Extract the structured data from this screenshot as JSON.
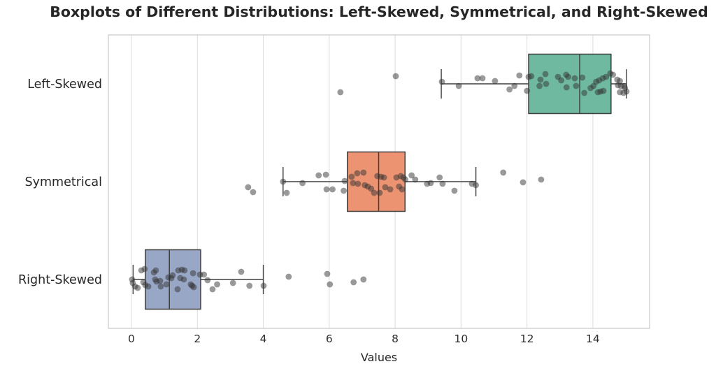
{
  "chart_data": {
    "type": "boxplot",
    "orientation": "horizontal",
    "title": "Boxplots of Different Distributions: Left-Skewed, Symmetrical, and Right-Skewed",
    "xlabel": "Values",
    "ylabel": "",
    "categories": [
      "Left-Skewed",
      "Symmetrical",
      "Right-Skewed"
    ],
    "x_ticks": [
      0,
      2,
      4,
      6,
      8,
      10,
      12,
      14
    ],
    "xlim": [
      -0.7,
      15.72
    ],
    "grid": "vertical-only",
    "legend": "none",
    "grid_color": "#dcdcdc",
    "spine_color": "#cccccc",
    "line_color": "#3f3f3f",
    "point_color": "#333333",
    "point_opacity": 0.5,
    "point_radius": 4.4,
    "tick_label_color": "#2e2e2e",
    "category_label_color": "#262626",
    "series": [
      {
        "name": "Left-Skewed",
        "box_color": "#6fb9a1",
        "whisker_low": 9.4,
        "q1": 12.05,
        "median": 13.6,
        "q3": 14.55,
        "whisker_high": 15.02,
        "points_value_jitterpx": [
          [
            6.34,
            12
          ],
          [
            8.02,
            -11
          ],
          [
            9.42,
            -3
          ],
          [
            9.93,
            3
          ],
          [
            10.5,
            -8
          ],
          [
            10.65,
            -8
          ],
          [
            11.03,
            -4
          ],
          [
            11.47,
            8
          ],
          [
            11.62,
            3
          ],
          [
            11.77,
            -12
          ],
          [
            12.0,
            10
          ],
          [
            12.05,
            -10
          ],
          [
            12.13,
            -11
          ],
          [
            12.38,
            3
          ],
          [
            12.41,
            -6
          ],
          [
            12.56,
            -14
          ],
          [
            12.58,
            0
          ],
          [
            12.94,
            -10
          ],
          [
            13.04,
            -5
          ],
          [
            13.19,
            -13
          ],
          [
            13.2,
            5
          ],
          [
            13.25,
            -10
          ],
          [
            13.45,
            -8
          ],
          [
            13.49,
            3
          ],
          [
            13.68,
            -9
          ],
          [
            13.74,
            13
          ],
          [
            13.93,
            6
          ],
          [
            14.02,
            3
          ],
          [
            14.1,
            -3
          ],
          [
            14.15,
            12
          ],
          [
            14.19,
            -5
          ],
          [
            14.23,
            11
          ],
          [
            14.3,
            -8
          ],
          [
            14.32,
            10
          ],
          [
            14.4,
            -10
          ],
          [
            14.53,
            -15
          ],
          [
            14.61,
            -13
          ],
          [
            14.74,
            -6
          ],
          [
            14.76,
            2
          ],
          [
            14.82,
            -4
          ],
          [
            14.82,
            12
          ],
          [
            14.85,
            3
          ],
          [
            14.93,
            13
          ],
          [
            14.95,
            3
          ],
          [
            14.97,
            6
          ],
          [
            15.02,
            11
          ]
        ]
      },
      {
        "name": "Symmetrical",
        "box_color": "#ec9372",
        "whisker_low": 4.6,
        "q1": 6.55,
        "median": 7.5,
        "q3": 8.3,
        "whisker_high": 10.45,
        "points_value_jitterpx": [
          [
            3.54,
            8
          ],
          [
            3.69,
            15
          ],
          [
            4.6,
            0
          ],
          [
            4.71,
            16
          ],
          [
            5.19,
            2
          ],
          [
            5.68,
            -9
          ],
          [
            5.9,
            -10
          ],
          [
            5.92,
            11
          ],
          [
            6.1,
            11
          ],
          [
            6.44,
            13
          ],
          [
            6.47,
            -1
          ],
          [
            6.68,
            -7
          ],
          [
            6.72,
            2
          ],
          [
            6.85,
            -12
          ],
          [
            6.87,
            3
          ],
          [
            7.04,
            -13
          ],
          [
            7.08,
            5
          ],
          [
            7.17,
            7
          ],
          [
            7.27,
            10
          ],
          [
            7.36,
            16
          ],
          [
            7.46,
            -8
          ],
          [
            7.53,
            16
          ],
          [
            7.57,
            -7
          ],
          [
            7.66,
            -6
          ],
          [
            7.7,
            8
          ],
          [
            7.85,
            11
          ],
          [
            8.04,
            -6
          ],
          [
            8.12,
            7
          ],
          [
            8.17,
            -8
          ],
          [
            8.21,
            11
          ],
          [
            8.25,
            -6
          ],
          [
            8.31,
            -3
          ],
          [
            8.5,
            -9
          ],
          [
            8.61,
            -3
          ],
          [
            8.97,
            3
          ],
          [
            9.08,
            2
          ],
          [
            9.35,
            -6
          ],
          [
            9.44,
            3
          ],
          [
            9.8,
            13
          ],
          [
            10.33,
            3
          ],
          [
            10.45,
            5
          ],
          [
            11.28,
            -13
          ],
          [
            11.88,
            1
          ],
          [
            12.43,
            -3
          ]
        ]
      },
      {
        "name": "Right-Skewed",
        "box_color": "#99a7c6",
        "whisker_low": 0.05,
        "q1": 0.42,
        "median": 1.15,
        "q3": 2.1,
        "whisker_high": 4.0,
        "points_value_jitterpx": [
          [
            0.02,
            0
          ],
          [
            0.04,
            5
          ],
          [
            0.11,
            10
          ],
          [
            0.19,
            12
          ],
          [
            0.3,
            -13
          ],
          [
            0.36,
            4
          ],
          [
            0.4,
            -15
          ],
          [
            0.42,
            8
          ],
          [
            0.51,
            10
          ],
          [
            0.68,
            -10
          ],
          [
            0.72,
            0
          ],
          [
            0.74,
            -13
          ],
          [
            0.76,
            3
          ],
          [
            0.87,
            2
          ],
          [
            0.89,
            10
          ],
          [
            1.06,
            7
          ],
          [
            1.12,
            -3
          ],
          [
            1.21,
            -2
          ],
          [
            1.25,
            -6
          ],
          [
            1.4,
            14
          ],
          [
            1.42,
            -13
          ],
          [
            1.48,
            -2
          ],
          [
            1.53,
            -14
          ],
          [
            1.59,
            0
          ],
          [
            1.61,
            -13
          ],
          [
            1.8,
            7
          ],
          [
            1.84,
            9
          ],
          [
            1.87,
            -9
          ],
          [
            1.89,
            11
          ],
          [
            2.08,
            -7
          ],
          [
            2.2,
            -7
          ],
          [
            2.31,
            1
          ],
          [
            2.46,
            14
          ],
          [
            2.6,
            7
          ],
          [
            3.08,
            5
          ],
          [
            3.33,
            -11
          ],
          [
            3.58,
            9
          ],
          [
            4.01,
            9
          ],
          [
            4.77,
            -4
          ],
          [
            5.94,
            -8
          ],
          [
            6.02,
            7
          ],
          [
            6.74,
            4
          ],
          [
            7.04,
            0
          ]
        ]
      }
    ]
  }
}
